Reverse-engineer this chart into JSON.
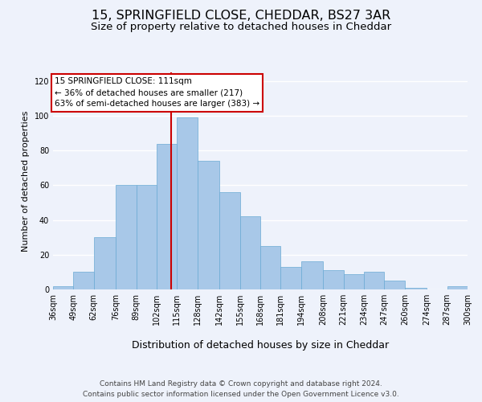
{
  "title1": "15, SPRINGFIELD CLOSE, CHEDDAR, BS27 3AR",
  "title2": "Size of property relative to detached houses in Cheddar",
  "xlabel": "Distribution of detached houses by size in Cheddar",
  "ylabel": "Number of detached properties",
  "bin_labels": [
    "36sqm",
    "49sqm",
    "62sqm",
    "76sqm",
    "89sqm",
    "102sqm",
    "115sqm",
    "128sqm",
    "142sqm",
    "155sqm",
    "168sqm",
    "181sqm",
    "194sqm",
    "208sqm",
    "221sqm",
    "234sqm",
    "247sqm",
    "260sqm",
    "274sqm",
    "287sqm",
    "300sqm"
  ],
  "bin_edges": [
    36,
    49,
    62,
    76,
    89,
    102,
    115,
    128,
    142,
    155,
    168,
    181,
    194,
    208,
    221,
    234,
    247,
    260,
    274,
    287,
    300
  ],
  "bar_heights": [
    2,
    10,
    30,
    60,
    60,
    84,
    99,
    74,
    56,
    42,
    25,
    13,
    16,
    11,
    9,
    10,
    5,
    1,
    0,
    2
  ],
  "bar_color": "#a8c8e8",
  "bar_edge_color": "#6aaad4",
  "vline_x": 111,
  "vline_color": "#cc0000",
  "annotation_title": "15 SPRINGFIELD CLOSE: 111sqm",
  "annotation_line1": "← 36% of detached houses are smaller (217)",
  "annotation_line2": "63% of semi-detached houses are larger (383) →",
  "annotation_box_color": "#ffffff",
  "annotation_box_edge": "#cc0000",
  "ylim": [
    0,
    125
  ],
  "yticks": [
    0,
    20,
    40,
    60,
    80,
    100,
    120
  ],
  "footer1": "Contains HM Land Registry data © Crown copyright and database right 2024.",
  "footer2": "Contains public sector information licensed under the Open Government Licence v3.0.",
  "bg_color": "#eef2fb",
  "plot_bg_color": "#eef2fb",
  "grid_color": "#ffffff",
  "title1_fontsize": 11.5,
  "title2_fontsize": 9.5,
  "xlabel_fontsize": 9,
  "ylabel_fontsize": 8,
  "tick_fontsize": 7,
  "footer_fontsize": 6.5,
  "annotation_fontsize": 7.5
}
